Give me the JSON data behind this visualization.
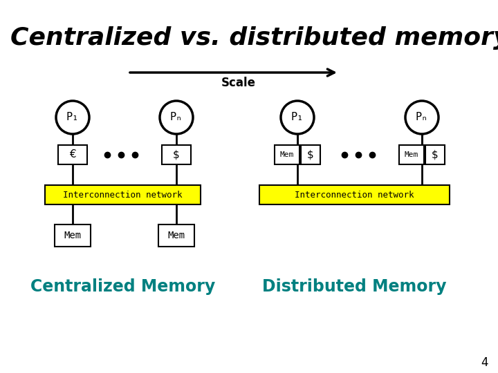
{
  "title": "Centralized vs. distributed memory",
  "title_fontsize": 26,
  "bg_color": "#ffffff",
  "arrow_color": "#000000",
  "scale_label": "Scale",
  "centralized_label": "Centralized Memory",
  "distributed_label": "Distributed Memory",
  "label_color": "#008080",
  "label_fontsize": 17,
  "interconnect_color": "#ffff00",
  "interconnect_text": "Interconnection network",
  "box_color": "#ffffff",
  "box_edge": "#000000",
  "circle_color": "#ffffff",
  "circle_edge": "#000000",
  "dot_color": "#000000",
  "page_number": "4"
}
